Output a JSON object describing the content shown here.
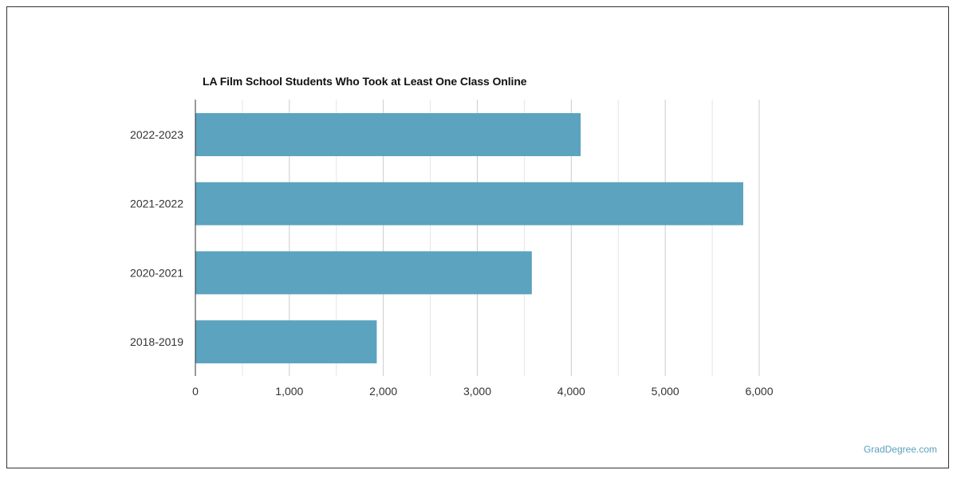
{
  "chart_data": {
    "type": "bar",
    "orientation": "horizontal",
    "title": "LA Film School Students Who Took at Least One Class Online",
    "categories": [
      "2022-2023",
      "2021-2022",
      "2020-2021",
      "2018-2019"
    ],
    "values": [
      4100,
      5830,
      3580,
      1930
    ],
    "xlim": [
      0,
      6000
    ],
    "xticks": [
      "0",
      "1,000",
      "2,000",
      "3,000",
      "4,000",
      "5,000",
      "6,000"
    ],
    "xlabel": "",
    "ylabel": "",
    "grid": true,
    "bar_color": "#5ba3bf"
  },
  "watermark": "GradDegree.com"
}
